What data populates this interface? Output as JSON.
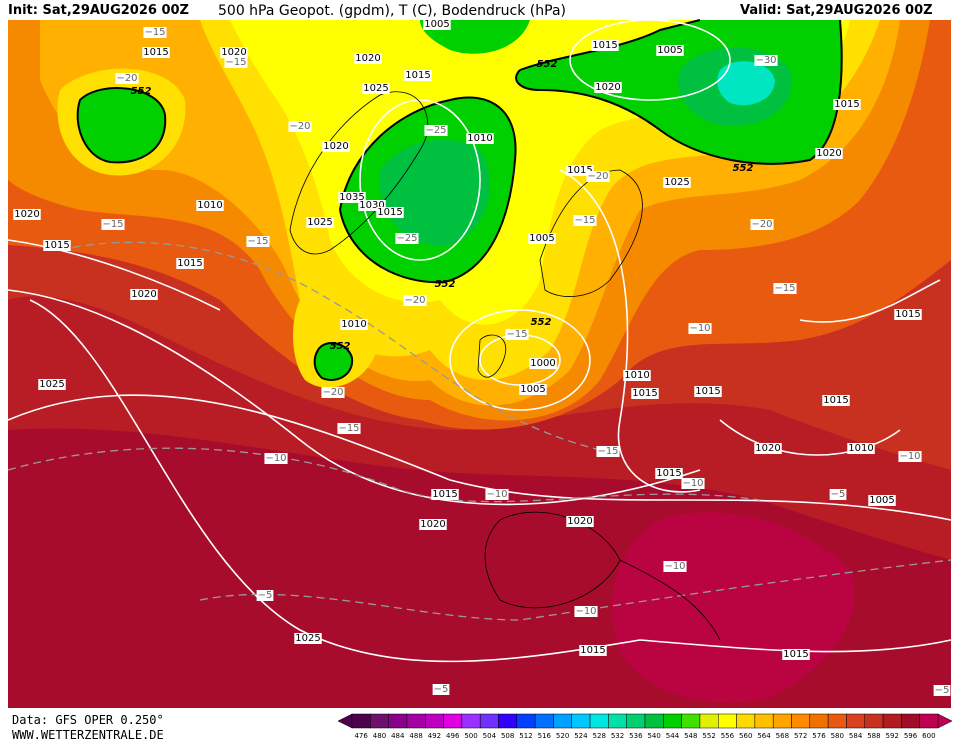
{
  "header": {
    "init": "Init: Sat,29AUG2026 00Z",
    "title": "500 hPa Geopot. (gpdm), T (C), Bodendruck (hPa)",
    "valid": "Valid: Sat,29AUG2026 00Z"
  },
  "isobar_labels": [
    "1005",
    "1015",
    "1020",
    "1020",
    "1015",
    "1025",
    "1015",
    "1005",
    "1020",
    "1015",
    "1020",
    "1010",
    "1020",
    "1015",
    "1025",
    "1010",
    "1020",
    "1035",
    "1030",
    "1015",
    "1025",
    "1015",
    "1015",
    "1005",
    "1020",
    "1010",
    "1000",
    "1010",
    "1005",
    "1015",
    "1015",
    "1015",
    "1025",
    "1015",
    "1020",
    "1010",
    "1015",
    "1015",
    "1005",
    "1020",
    "1020",
    "1025",
    "1015",
    "1015"
  ],
  "temperature_labels": [
    "−15",
    "−20",
    "−15",
    "−20",
    "−25",
    "−15",
    "−15",
    "−25",
    "−20",
    "−15",
    "−20",
    "−30",
    "−20",
    "−15",
    "−20",
    "−15",
    "−10",
    "−10",
    "−15",
    "−15",
    "−10",
    "−10",
    "−5",
    "−10",
    "−10",
    "−10",
    "−5",
    "−5",
    "−5"
  ],
  "height_labels": [
    "552",
    "552",
    "552",
    "552",
    "552",
    "552"
  ],
  "colorbar": {
    "levels": [
      476,
      480,
      484,
      488,
      492,
      496,
      500,
      504,
      508,
      512,
      516,
      520,
      524,
      528,
      532,
      536,
      540,
      544,
      548,
      552,
      556,
      560,
      564,
      568,
      572,
      576,
      580,
      584,
      588,
      592,
      596,
      600
    ],
    "colors": [
      "#4d004d",
      "#6e0f6e",
      "#8b008b",
      "#a400a4",
      "#c000c0",
      "#e000e0",
      "#9a30ff",
      "#7030ff",
      "#3000ff",
      "#0040ff",
      "#0070ff",
      "#00a0ff",
      "#00c8ff",
      "#00e6e0",
      "#00e0a8",
      "#00d070",
      "#00c040",
      "#00d000",
      "#40e000",
      "#e0f000",
      "#ffff00",
      "#ffd800",
      "#ffc000",
      "#ffa500",
      "#ff8c00",
      "#f07000",
      "#e85a10",
      "#d84020",
      "#c83020",
      "#b01c20",
      "#a00c28",
      "#c00050"
    ]
  },
  "footer": {
    "data": "Data: GFS OPER 0.250°",
    "site": "WWW.WETTERZENTRALE.DE"
  }
}
